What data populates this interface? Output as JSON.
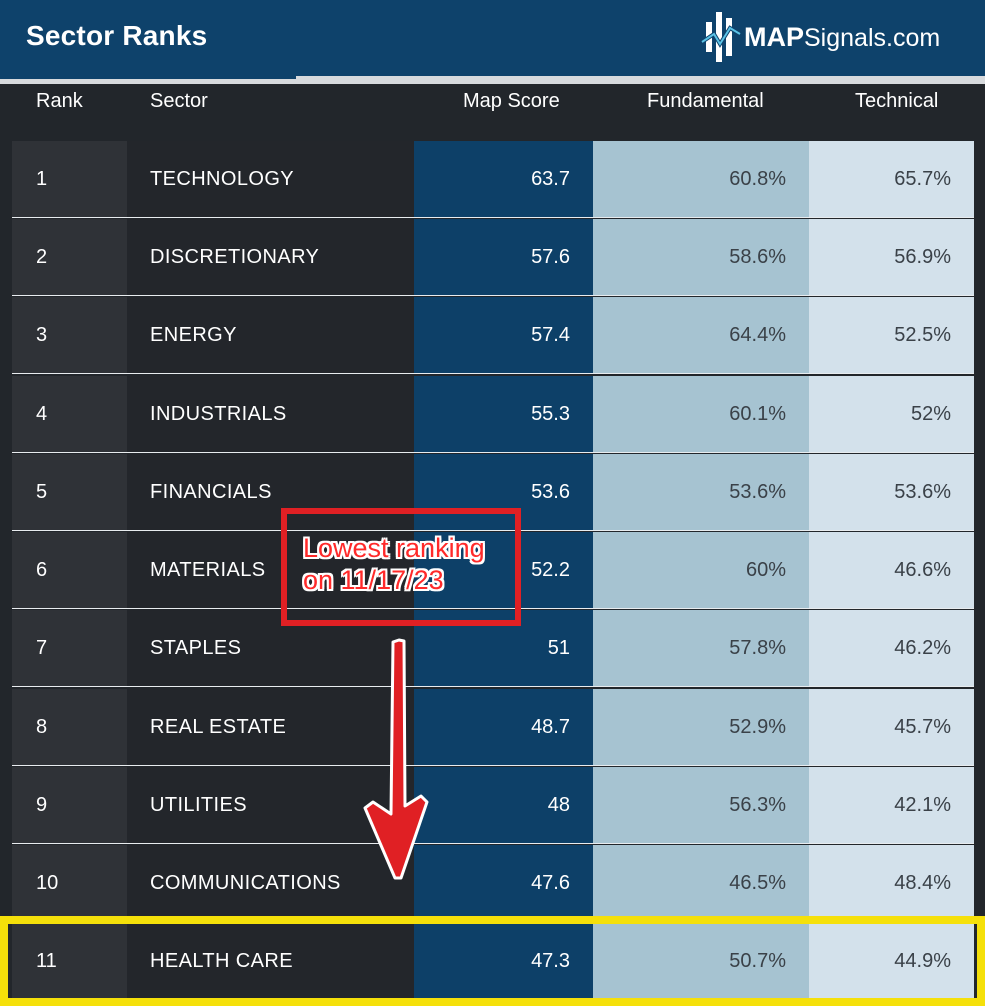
{
  "header": {
    "title": "Sector Ranks",
    "logo_map": "MAP",
    "logo_rest": "Signals.com",
    "logo_icon": "mapsignals-logo-icon"
  },
  "columns": {
    "rank": "Rank",
    "sector": "Sector",
    "map_score": "Map Score",
    "fundamental": "Fundamental",
    "technical": "Technical"
  },
  "rows": [
    {
      "rank": "1",
      "sector": "TECHNOLOGY",
      "map_score": "63.7",
      "fundamental": "60.8%",
      "technical": "65.7%"
    },
    {
      "rank": "2",
      "sector": "DISCRETIONARY",
      "map_score": "57.6",
      "fundamental": "58.6%",
      "technical": "56.9%"
    },
    {
      "rank": "3",
      "sector": "ENERGY",
      "map_score": "57.4",
      "fundamental": "64.4%",
      "technical": "52.5%"
    },
    {
      "rank": "4",
      "sector": "INDUSTRIALS",
      "map_score": "55.3",
      "fundamental": "60.1%",
      "technical": "52%"
    },
    {
      "rank": "5",
      "sector": "FINANCIALS",
      "map_score": "53.6",
      "fundamental": "53.6%",
      "technical": "53.6%"
    },
    {
      "rank": "6",
      "sector": "MATERIALS",
      "map_score": "52.2",
      "fundamental": "60%",
      "technical": "46.6%"
    },
    {
      "rank": "7",
      "sector": "STAPLES",
      "map_score": "51",
      "fundamental": "57.8%",
      "technical": "46.2%"
    },
    {
      "rank": "8",
      "sector": "REAL ESTATE",
      "map_score": "48.7",
      "fundamental": "52.9%",
      "technical": "45.7%"
    },
    {
      "rank": "9",
      "sector": "UTILITIES",
      "map_score": "48",
      "fundamental": "56.3%",
      "technical": "42.1%"
    },
    {
      "rank": "10",
      "sector": "COMMUNICATIONS",
      "map_score": "47.6",
      "fundamental": "46.5%",
      "technical": "48.4%"
    },
    {
      "rank": "11",
      "sector": "HEALTH CARE",
      "map_score": "47.3",
      "fundamental": "50.7%",
      "technical": "44.9%"
    }
  ],
  "annotation": {
    "line1": "Lowest ranking",
    "line2": "on 11/17/23"
  },
  "colors": {
    "header_bg": "#0e426b",
    "map_score_col": "#0d4068",
    "fundamental_col": "#a6c3d1",
    "technical_col": "#d3e1eb",
    "annotation_red": "#e02024",
    "highlight_yellow": "#f5e00a"
  }
}
